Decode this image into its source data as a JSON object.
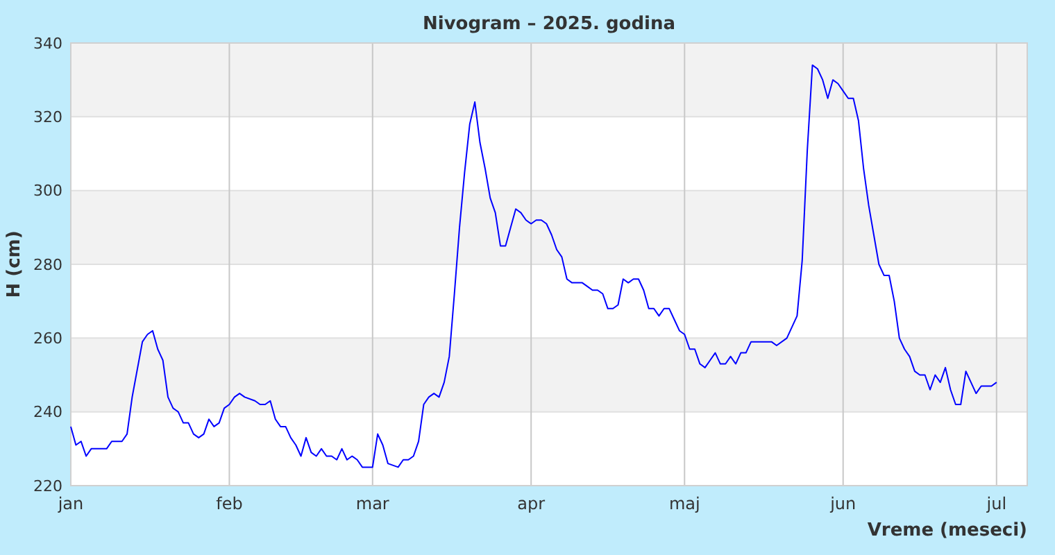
{
  "chart_data": {
    "type": "line",
    "title": "Nivogram – 2025. godina",
    "xlabel": "Vreme (meseci)",
    "ylabel": "H (cm)",
    "xlim": [
      "2025-01-01",
      "2025-07-07"
    ],
    "ylim": [
      220,
      340
    ],
    "xticks": [
      {
        "value": "2025-01-01",
        "label": "jan"
      },
      {
        "value": "2025-02-01",
        "label": "feb"
      },
      {
        "value": "2025-03-01",
        "label": "mar"
      },
      {
        "value": "2025-04-01",
        "label": "apr"
      },
      {
        "value": "2025-05-01",
        "label": "maj"
      },
      {
        "value": "2025-06-01",
        "label": "jun"
      },
      {
        "value": "2025-07-01",
        "label": "jul"
      }
    ],
    "yticks": [
      220,
      240,
      260,
      280,
      300,
      320,
      340
    ],
    "grid": true,
    "marker": "none",
    "line_style": "solid",
    "x": [
      "2025-01-01",
      "2025-01-02",
      "2025-01-03",
      "2025-01-04",
      "2025-01-05",
      "2025-01-08",
      "2025-01-09",
      "2025-01-11",
      "2025-01-12",
      "2025-01-13",
      "2025-01-15",
      "2025-01-16",
      "2025-01-17",
      "2025-01-18",
      "2025-01-19",
      "2025-01-20",
      "2025-01-21",
      "2025-01-22",
      "2025-01-23",
      "2025-01-24",
      "2025-01-25",
      "2025-01-26",
      "2025-01-27",
      "2025-01-28",
      "2025-01-29",
      "2025-01-30",
      "2025-01-31",
      "2025-02-01",
      "2025-02-02",
      "2025-02-03",
      "2025-02-04",
      "2025-02-06",
      "2025-02-07",
      "2025-02-08",
      "2025-02-09",
      "2025-02-10",
      "2025-02-11",
      "2025-02-12",
      "2025-02-13",
      "2025-02-14",
      "2025-02-15",
      "2025-02-16",
      "2025-02-17",
      "2025-02-18",
      "2025-02-19",
      "2025-02-20",
      "2025-02-21",
      "2025-02-22",
      "2025-02-23",
      "2025-02-24",
      "2025-02-25",
      "2025-02-26",
      "2025-02-27",
      "2025-03-01",
      "2025-03-02",
      "2025-03-03",
      "2025-03-04",
      "2025-03-06",
      "2025-03-07",
      "2025-03-08",
      "2025-03-09",
      "2025-03-10",
      "2025-03-11",
      "2025-03-12",
      "2025-03-13",
      "2025-03-14",
      "2025-03-15",
      "2025-03-16",
      "2025-03-17",
      "2025-03-18",
      "2025-03-19",
      "2025-03-20",
      "2025-03-21",
      "2025-03-22",
      "2025-03-23",
      "2025-03-24",
      "2025-03-25",
      "2025-03-26",
      "2025-03-27",
      "2025-03-28",
      "2025-03-29",
      "2025-03-30",
      "2025-03-31",
      "2025-04-01",
      "2025-04-02",
      "2025-04-03",
      "2025-04-04",
      "2025-04-05",
      "2025-04-06",
      "2025-04-07",
      "2025-04-08",
      "2025-04-09",
      "2025-04-11",
      "2025-04-12",
      "2025-04-13",
      "2025-04-14",
      "2025-04-15",
      "2025-04-16",
      "2025-04-17",
      "2025-04-18",
      "2025-04-19",
      "2025-04-20",
      "2025-04-21",
      "2025-04-22",
      "2025-04-23",
      "2025-04-24",
      "2025-04-25",
      "2025-04-26",
      "2025-04-27",
      "2025-04-28",
      "2025-04-29",
      "2025-04-30",
      "2025-05-01",
      "2025-05-02",
      "2025-05-03",
      "2025-05-04",
      "2025-05-05",
      "2025-05-06",
      "2025-05-07",
      "2025-05-08",
      "2025-05-09",
      "2025-05-10",
      "2025-05-11",
      "2025-05-12",
      "2025-05-13",
      "2025-05-14",
      "2025-05-18",
      "2025-05-19",
      "2025-05-21",
      "2025-05-22",
      "2025-05-23",
      "2025-05-24",
      "2025-05-25",
      "2025-05-26",
      "2025-05-27",
      "2025-05-28",
      "2025-05-29",
      "2025-05-30",
      "2025-05-31",
      "2025-06-01",
      "2025-06-02",
      "2025-06-03",
      "2025-06-04",
      "2025-06-05",
      "2025-06-06",
      "2025-06-07",
      "2025-06-08",
      "2025-06-09",
      "2025-06-10",
      "2025-06-11",
      "2025-06-12",
      "2025-06-13",
      "2025-06-14",
      "2025-06-15",
      "2025-06-16",
      "2025-06-17",
      "2025-06-18",
      "2025-06-19",
      "2025-06-20",
      "2025-06-21",
      "2025-06-22",
      "2025-06-23",
      "2025-06-24",
      "2025-06-25",
      "2025-06-26",
      "2025-06-27",
      "2025-06-28",
      "2025-06-30",
      "2025-07-01"
    ],
    "series": [
      {
        "color": "#0000ff",
        "values": [
          236,
          231,
          232,
          228,
          230,
          230,
          232,
          232,
          234,
          244,
          259,
          261,
          262,
          257,
          254,
          244,
          241,
          240,
          237,
          237,
          234,
          233,
          234,
          238,
          236,
          237,
          241,
          242,
          244,
          245,
          244,
          243,
          242,
          242,
          243,
          238,
          236,
          236,
          233,
          231,
          228,
          233,
          229,
          228,
          230,
          228,
          228,
          227,
          230,
          227,
          228,
          227,
          225,
          225,
          234,
          231,
          226,
          225,
          227,
          227,
          228,
          232,
          242,
          244,
          245,
          244,
          248,
          255,
          272,
          290,
          305,
          318,
          324,
          313,
          306,
          298,
          294,
          285,
          285,
          290,
          295,
          294,
          292,
          291,
          292,
          292,
          291,
          288,
          284,
          282,
          276,
          275,
          275,
          274,
          273,
          273,
          272,
          268,
          268,
          269,
          276,
          275,
          276,
          276,
          273,
          268,
          268,
          266,
          268,
          268,
          265,
          262,
          261,
          257,
          257,
          253,
          252,
          254,
          256,
          253,
          253,
          255,
          253,
          256,
          256,
          259,
          259,
          258,
          260,
          263,
          266,
          281,
          311,
          334,
          333,
          330,
          325,
          330,
          329,
          327,
          325,
          325,
          319,
          306,
          296,
          288,
          280,
          277,
          277,
          270,
          260,
          257,
          255,
          251,
          250,
          250,
          246,
          250,
          248,
          252,
          246,
          242,
          242,
          251,
          248,
          245,
          247,
          247,
          248
        ]
      }
    ]
  }
}
